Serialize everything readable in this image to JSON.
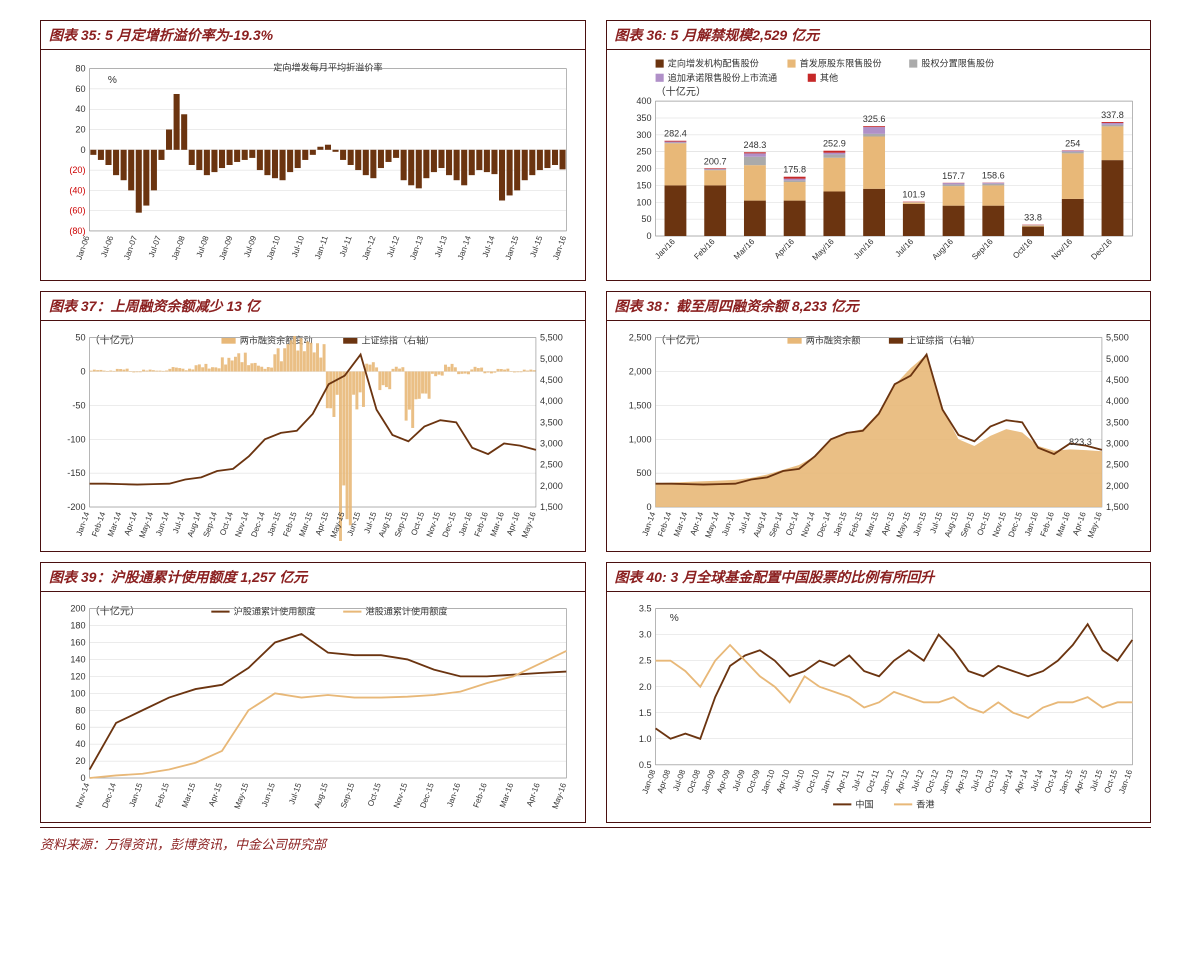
{
  "footer": "资料来源：万得资讯，彭博资讯，中金公司研究部",
  "colors": {
    "brown_dark": "#6b3410",
    "brown_line": "#8b5020",
    "tan": "#e8b878",
    "red": "#c62828",
    "gray": "#aaaaaa",
    "purple": "#b090c8",
    "grid": "#d8d8d8",
    "border": "#888888"
  },
  "chart35": {
    "title": "图表 35: 5 月定增折溢价率为-19.3%",
    "legend": "定向增发每月平均折溢价率",
    "unit": "%",
    "ylim": [
      -80,
      80
    ],
    "ystep": 20,
    "xlabels": [
      "Jan-06",
      "Jul-06",
      "Jan-07",
      "Jul-07",
      "Jan-08",
      "Jul-08",
      "Jan-09",
      "Jul-09",
      "Jan-10",
      "Jul-10",
      "Jan-11",
      "Jul-11",
      "Jan-12",
      "Jul-12",
      "Jan-13",
      "Jul-13",
      "Jan-14",
      "Jul-14",
      "Jan-15",
      "Jul-15",
      "Jan-16"
    ],
    "bars": [
      -5,
      -10,
      -15,
      -25,
      -30,
      -40,
      -62,
      -55,
      -40,
      -10,
      20,
      55,
      35,
      -15,
      -20,
      -25,
      -22,
      -18,
      -15,
      -12,
      -10,
      -8,
      -20,
      -25,
      -28,
      -30,
      -22,
      -18,
      -10,
      -5,
      3,
      5,
      -2,
      -10,
      -15,
      -20,
      -25,
      -28,
      -18,
      -12,
      -8,
      -30,
      -35,
      -38,
      -28,
      -22,
      -18,
      -25,
      -30,
      -35,
      -25,
      -20,
      -22,
      -24,
      -50,
      -45,
      -40,
      -30,
      -25,
      -20,
      -18,
      -15,
      -19.3
    ]
  },
  "chart36": {
    "title": "图表 36: 5 月解禁规模2,529 亿元",
    "unit": "（十亿元）",
    "legend": [
      {
        "name": "定向增发机构配售股份",
        "color": "#6b3410"
      },
      {
        "name": "首发原股东限售股份",
        "color": "#e8b878"
      },
      {
        "name": "股权分置限售股份",
        "color": "#aaaaaa"
      },
      {
        "name": "追加承诺限售股份上市流通",
        "color": "#b090c8"
      },
      {
        "name": "其他",
        "color": "#c62828"
      }
    ],
    "ylim": [
      0,
      400
    ],
    "ystep": 50,
    "categories": [
      "Jan/16",
      "Feb/16",
      "Mar/16",
      "Apr/16",
      "May/16",
      "Jun/16",
      "Jul/16",
      "Aug/16",
      "Sep/16",
      "Oct/16",
      "Nov/16",
      "Dec/16"
    ],
    "stacks": [
      [
        150,
        125,
        2,
        3,
        2.4
      ],
      [
        150,
        45,
        2,
        2,
        1.7
      ],
      [
        105,
        105,
        25,
        10,
        3.3
      ],
      [
        105,
        55,
        5,
        5,
        5.8
      ],
      [
        132,
        100,
        10,
        5,
        5.9
      ],
      [
        140,
        155,
        8,
        20,
        2.6
      ],
      [
        95,
        5,
        0,
        1,
        0.9
      ],
      [
        90,
        58,
        5,
        4,
        0.7
      ],
      [
        90,
        60,
        5,
        3,
        0.6
      ],
      [
        28,
        3,
        1,
        1,
        0.8
      ],
      [
        110,
        135,
        5,
        3,
        1
      ],
      [
        225,
        100,
        5,
        5,
        2.8
      ]
    ],
    "totals": [
      282.4,
      200.7,
      248.3,
      175.8,
      252.9,
      325.6,
      101.9,
      157.7,
      158.6,
      33.8,
      254.0,
      337.8
    ]
  },
  "chart37": {
    "title": "图表 37：上周融资余额减少 13 亿",
    "unit": "（十亿元）",
    "legend": [
      {
        "name": "两市融资余额变动",
        "color": "#e8b878"
      },
      {
        "name": "上证综指（右轴）",
        "color": "#6b3410"
      }
    ],
    "yleft": [
      -200,
      50
    ],
    "yleft_step": 50,
    "yright": [
      1500,
      5500
    ],
    "yright_step": 500,
    "xlabels": [
      "Jan-14",
      "Feb-14",
      "Mar-14",
      "Apr-14",
      "May-14",
      "Jun-14",
      "Jul-14",
      "Aug-14",
      "Sep-14",
      "Oct-14",
      "Nov-14",
      "Dec-14",
      "Jan-15",
      "Feb-15",
      "Mar-15",
      "Apr-15",
      "May-15",
      "Jun-15",
      "Jul-15",
      "Aug-15",
      "Sep-15",
      "Oct-15",
      "Nov-15",
      "Dec-15",
      "Jan-16",
      "Feb-16",
      "Mar-16",
      "Apr-16",
      "May-16"
    ],
    "left_bars_sparse": [
      2,
      1,
      3,
      -1,
      2,
      1,
      5,
      3,
      8,
      5,
      15,
      20,
      10,
      5,
      25,
      40,
      35,
      30,
      -50,
      -180,
      -40,
      10,
      -20,
      5,
      -60,
      -30,
      -5,
      8,
      -3,
      5,
      -2,
      3,
      -1,
      2
    ],
    "line": [
      2050,
      2050,
      2040,
      2030,
      2040,
      2050,
      2150,
      2200,
      2350,
      2400,
      2700,
      3100,
      3250,
      3300,
      3700,
      4400,
      4600,
      5100,
      3800,
      3200,
      3050,
      3400,
      3550,
      3500,
      2900,
      2750,
      3000,
      2950,
      2850
    ]
  },
  "chart38": {
    "title": "图表 38：截至周四融资余额 8,233 亿元",
    "unit": "（十亿元）",
    "legend": [
      {
        "name": "两市融资余额",
        "color": "#e8b878"
      },
      {
        "name": "上证综指（右轴）",
        "color": "#6b3410"
      }
    ],
    "yleft": [
      0,
      2500
    ],
    "yleft_step": 500,
    "yright": [
      1500,
      5500
    ],
    "yright_step": 500,
    "xlabels": [
      "Jan-14",
      "Feb-14",
      "Mar-14",
      "Apr-14",
      "May-14",
      "Jun-14",
      "Jul-14",
      "Aug-14",
      "Sep-14",
      "Oct-14",
      "Nov-14",
      "Dec-14",
      "Jan-15",
      "Feb-15",
      "Mar-15",
      "Apr-15",
      "May-15",
      "Jun-15",
      "Jul-15",
      "Aug-15",
      "Sep-15",
      "Oct-15",
      "Nov-15",
      "Dec-15",
      "Jan-16",
      "Feb-16",
      "Mar-16",
      "Apr-16",
      "May-16"
    ],
    "area": [
      350,
      360,
      370,
      380,
      390,
      400,
      430,
      480,
      550,
      620,
      750,
      1000,
      1100,
      1150,
      1400,
      1800,
      2050,
      2250,
      1450,
      1000,
      900,
      1050,
      1150,
      1100,
      900,
      830,
      850,
      840,
      823.3
    ],
    "line": [
      2050,
      2050,
      2040,
      2030,
      2040,
      2050,
      2150,
      2200,
      2350,
      2400,
      2700,
      3100,
      3250,
      3300,
      3700,
      4400,
      4600,
      5100,
      3800,
      3200,
      3050,
      3400,
      3550,
      3500,
      2900,
      2750,
      3000,
      2950,
      2850
    ],
    "callout": "823.3"
  },
  "chart39": {
    "title": "图表 39：沪股通累计使用额度 1,257 亿元",
    "unit": "（十亿元）",
    "legend": [
      {
        "name": "沪股通累计使用额度",
        "color": "#6b3410"
      },
      {
        "name": "港股通累计使用额度",
        "color": "#e8b878"
      }
    ],
    "ylim": [
      0,
      200
    ],
    "ystep": 20,
    "xlabels": [
      "Nov-14",
      "Dec-14",
      "Jan-15",
      "Feb-15",
      "Mar-15",
      "Apr-15",
      "May-15",
      "Jun-15",
      "Jul-15",
      "Aug-15",
      "Sep-15",
      "Oct-15",
      "Nov-15",
      "Dec-15",
      "Jan-16",
      "Feb-16",
      "Mar-16",
      "Apr-16",
      "May-16"
    ],
    "line1": [
      10,
      65,
      80,
      95,
      105,
      110,
      130,
      160,
      170,
      148,
      145,
      145,
      140,
      128,
      120,
      120,
      122,
      124,
      125.7
    ],
    "line2": [
      0,
      3,
      5,
      10,
      18,
      32,
      80,
      100,
      95,
      98,
      95,
      95,
      96,
      98,
      102,
      112,
      120,
      135,
      150
    ]
  },
  "chart40": {
    "title": "图表 40: 3 月全球基金配置中国股票的比例有所回升",
    "unit": "%",
    "legend": [
      {
        "name": "中国",
        "color": "#6b3410"
      },
      {
        "name": "香港",
        "color": "#e8b878"
      }
    ],
    "ylim": [
      0.5,
      3.5
    ],
    "ystep": 0.5,
    "xlabels": [
      "Jan-08",
      "Apr-08",
      "Jul-08",
      "Oct-08",
      "Jan-09",
      "Apr-09",
      "Jul-09",
      "Oct-09",
      "Jan-10",
      "Apr-10",
      "Jul-10",
      "Oct-10",
      "Jan-11",
      "Apr-11",
      "Jul-11",
      "Oct-11",
      "Jan-12",
      "Apr-12",
      "Jul-12",
      "Oct-12",
      "Jan-13",
      "Apr-13",
      "Jul-13",
      "Oct-13",
      "Jan-14",
      "Apr-14",
      "Jul-14",
      "Oct-14",
      "Jan-15",
      "Apr-15",
      "Jul-15",
      "Oct-15",
      "Jan-16"
    ],
    "line1": [
      1.2,
      1.0,
      1.1,
      1.0,
      1.8,
      2.4,
      2.6,
      2.7,
      2.5,
      2.2,
      2.3,
      2.5,
      2.4,
      2.6,
      2.3,
      2.2,
      2.5,
      2.7,
      2.5,
      3.0,
      2.7,
      2.3,
      2.2,
      2.4,
      2.3,
      2.2,
      2.3,
      2.5,
      2.8,
      3.2,
      2.7,
      2.5,
      2.9
    ],
    "line2": [
      2.5,
      2.5,
      2.3,
      2.0,
      2.5,
      2.8,
      2.5,
      2.2,
      2.0,
      1.7,
      2.2,
      2.0,
      1.9,
      1.8,
      1.6,
      1.7,
      1.9,
      1.8,
      1.7,
      1.7,
      1.8,
      1.6,
      1.5,
      1.7,
      1.5,
      1.4,
      1.6,
      1.7,
      1.7,
      1.8,
      1.6,
      1.7,
      1.7
    ]
  }
}
